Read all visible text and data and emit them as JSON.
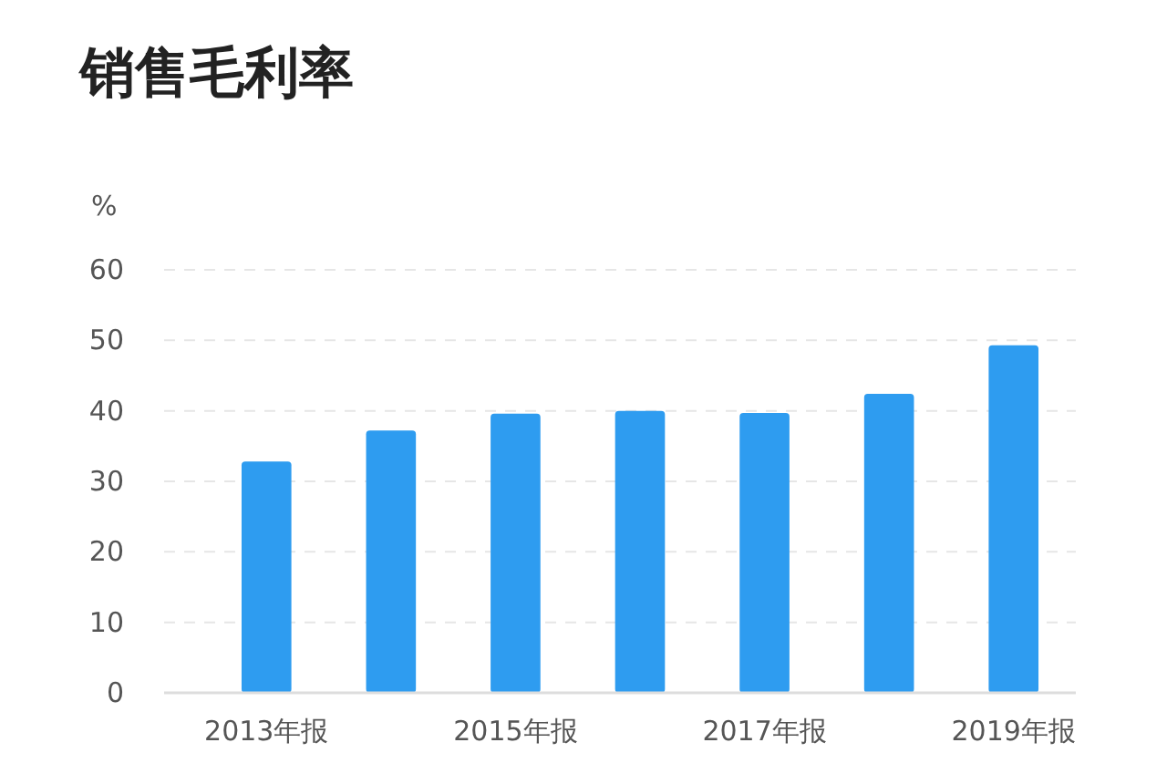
{
  "chart_data": {
    "type": "bar",
    "title": "销售毛利率",
    "ylabel": "%",
    "categories": [
      "2013年报",
      null,
      "2015年报",
      null,
      "2017年报",
      null,
      "2019年报"
    ],
    "values": [
      32.8,
      37.2,
      39.6,
      40.0,
      39.7,
      42.4,
      49.3
    ],
    "color": "#2e9cf0",
    "ylim": [
      0,
      60
    ],
    "yticks": [
      0,
      10,
      20,
      30,
      40,
      50,
      60
    ],
    "grid": "y"
  }
}
